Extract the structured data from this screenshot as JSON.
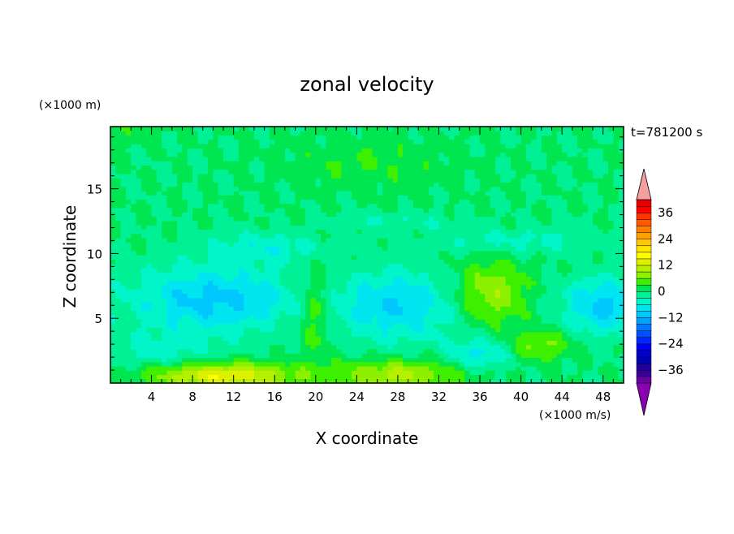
{
  "chart_data": {
    "type": "heatmap",
    "title": "zonal velocity",
    "xlabel": "X coordinate",
    "ylabel": "Z coordinate",
    "yunit": "(×1000 m)",
    "colorbar_unit": "(×1000 m/s)",
    "time_label": "t=781200 s",
    "xlim": [
      0,
      50
    ],
    "ylim": [
      0,
      19.8
    ],
    "x_ticks": [
      "4",
      "8",
      "12",
      "16",
      "20",
      "24",
      "28",
      "32",
      "36",
      "40",
      "44",
      "48"
    ],
    "y_ticks": [
      "5",
      "10",
      "15"
    ],
    "colorbar": {
      "ticks": [
        "36",
        "24",
        "12",
        "0",
        "−12",
        "−24",
        "−36"
      ],
      "levels": [
        -42,
        -39,
        -36,
        -33,
        -30,
        -27,
        -24,
        -21,
        -18,
        -15,
        -12,
        -9,
        -6,
        -3,
        0,
        3,
        6,
        9,
        12,
        15,
        18,
        21,
        24,
        27,
        30,
        33,
        36,
        39,
        42
      ],
      "colors": {
        "-42": "#6a00a8",
        "-39": "#3a0096",
        "-36": "#1e00a0",
        "-33": "#0000b4",
        "-30": "#0000d0",
        "-27": "#0000f0",
        "-24": "#0028ff",
        "-21": "#0050ff",
        "-18": "#0078ff",
        "-15": "#00a0ff",
        "-12": "#00c8ff",
        "-9": "#00e6f0",
        "-6": "#00f5c8",
        "-3": "#00f096",
        "0": "#00e650",
        "3": "#3cf000",
        "6": "#8cf000",
        "9": "#b4f000",
        "12": "#dcf000",
        "15": "#ffff00",
        "18": "#ffe600",
        "21": "#ffc800",
        "24": "#ffa000",
        "27": "#ff8000",
        "30": "#ff5a00",
        "33": "#ff3200",
        "36": "#ff0000",
        "39": "#e60000",
        "over": "#f4a0a0",
        "under": "#8c00b4"
      }
    },
    "field": {
      "background": 0,
      "blobs": [
        {
          "x": 10,
          "z": 6.5,
          "rx": 8,
          "rz": 2.6,
          "v": -10
        },
        {
          "x": 5,
          "z": 2.5,
          "rx": 5,
          "rz": 1.5,
          "v": -4
        },
        {
          "x": 28,
          "z": 6,
          "rx": 6,
          "rz": 2.8,
          "v": -9
        },
        {
          "x": 48,
          "z": 6,
          "rx": 4,
          "rz": 2.2,
          "v": -10
        },
        {
          "x": 15,
          "z": 10.5,
          "rx": 6,
          "rz": 1.2,
          "v": -5
        },
        {
          "x": 40,
          "z": 11,
          "rx": 8,
          "rz": 1,
          "v": -4
        },
        {
          "x": 28,
          "z": 12.5,
          "rx": 6,
          "rz": 0.7,
          "v": -3
        },
        {
          "x": 11,
          "z": 0.6,
          "rx": 7,
          "rz": 1,
          "v": 15
        },
        {
          "x": 28,
          "z": 0.7,
          "rx": 6,
          "rz": 1.1,
          "v": 10
        },
        {
          "x": 37,
          "z": 7,
          "rx": 3.5,
          "rz": 2.5,
          "v": 9
        },
        {
          "x": 42,
          "z": 3,
          "rx": 3,
          "rz": 1.2,
          "v": 7
        },
        {
          "x": 20,
          "z": 5.5,
          "rx": 1.6,
          "rz": 3.5,
          "v": 6
        },
        {
          "x": 36,
          "z": 2.3,
          "rx": 3,
          "rz": 1.2,
          "v": -7
        },
        {
          "x": 25,
          "z": 17,
          "rx": 8,
          "rz": 2,
          "v": 3
        },
        {
          "x": 1,
          "z": 19.5,
          "rx": 4,
          "rz": 1,
          "v": 2
        }
      ]
    }
  }
}
